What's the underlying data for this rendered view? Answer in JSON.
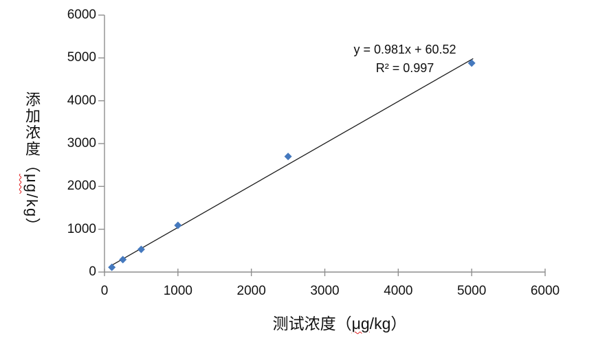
{
  "chart_data": {
    "type": "scatter",
    "title": "",
    "xlabel": "测试浓度（μg/kg）",
    "ylabel": "添加浓度（μg/kg）",
    "xlabel_parts": {
      "prefix": "测试浓度（",
      "flagged": "μg",
      "suffix": "/kg）"
    },
    "ylabel_parts": {
      "prefix": "添加浓度（",
      "flagged": "μg",
      "suffix": "/kg）"
    },
    "xlim": [
      0,
      6000
    ],
    "ylim": [
      0,
      6000
    ],
    "xticks": [
      0,
      1000,
      2000,
      3000,
      4000,
      5000,
      6000
    ],
    "yticks": [
      0,
      1000,
      2000,
      3000,
      4000,
      5000,
      6000
    ],
    "grid": false,
    "legend": false,
    "series": [
      {
        "name": "",
        "marker": "diamond",
        "points": [
          [
            100,
            110
          ],
          [
            250,
            290
          ],
          [
            500,
            530
          ],
          [
            1000,
            1090
          ],
          [
            2500,
            2700
          ],
          [
            5000,
            4880
          ]
        ]
      }
    ],
    "trendline": {
      "equation": "y = 0.981x + 60.52",
      "r_squared": "R² = 0.997",
      "slope": 0.981,
      "intercept": 60.52,
      "x_start": 100,
      "x_end": 5020
    },
    "colors": {
      "marker": "#4579be",
      "trendline": "#1c1c1c",
      "axis": "#8e8e8e",
      "text": "#131313",
      "spellcheck_underline": "#e02020"
    }
  }
}
